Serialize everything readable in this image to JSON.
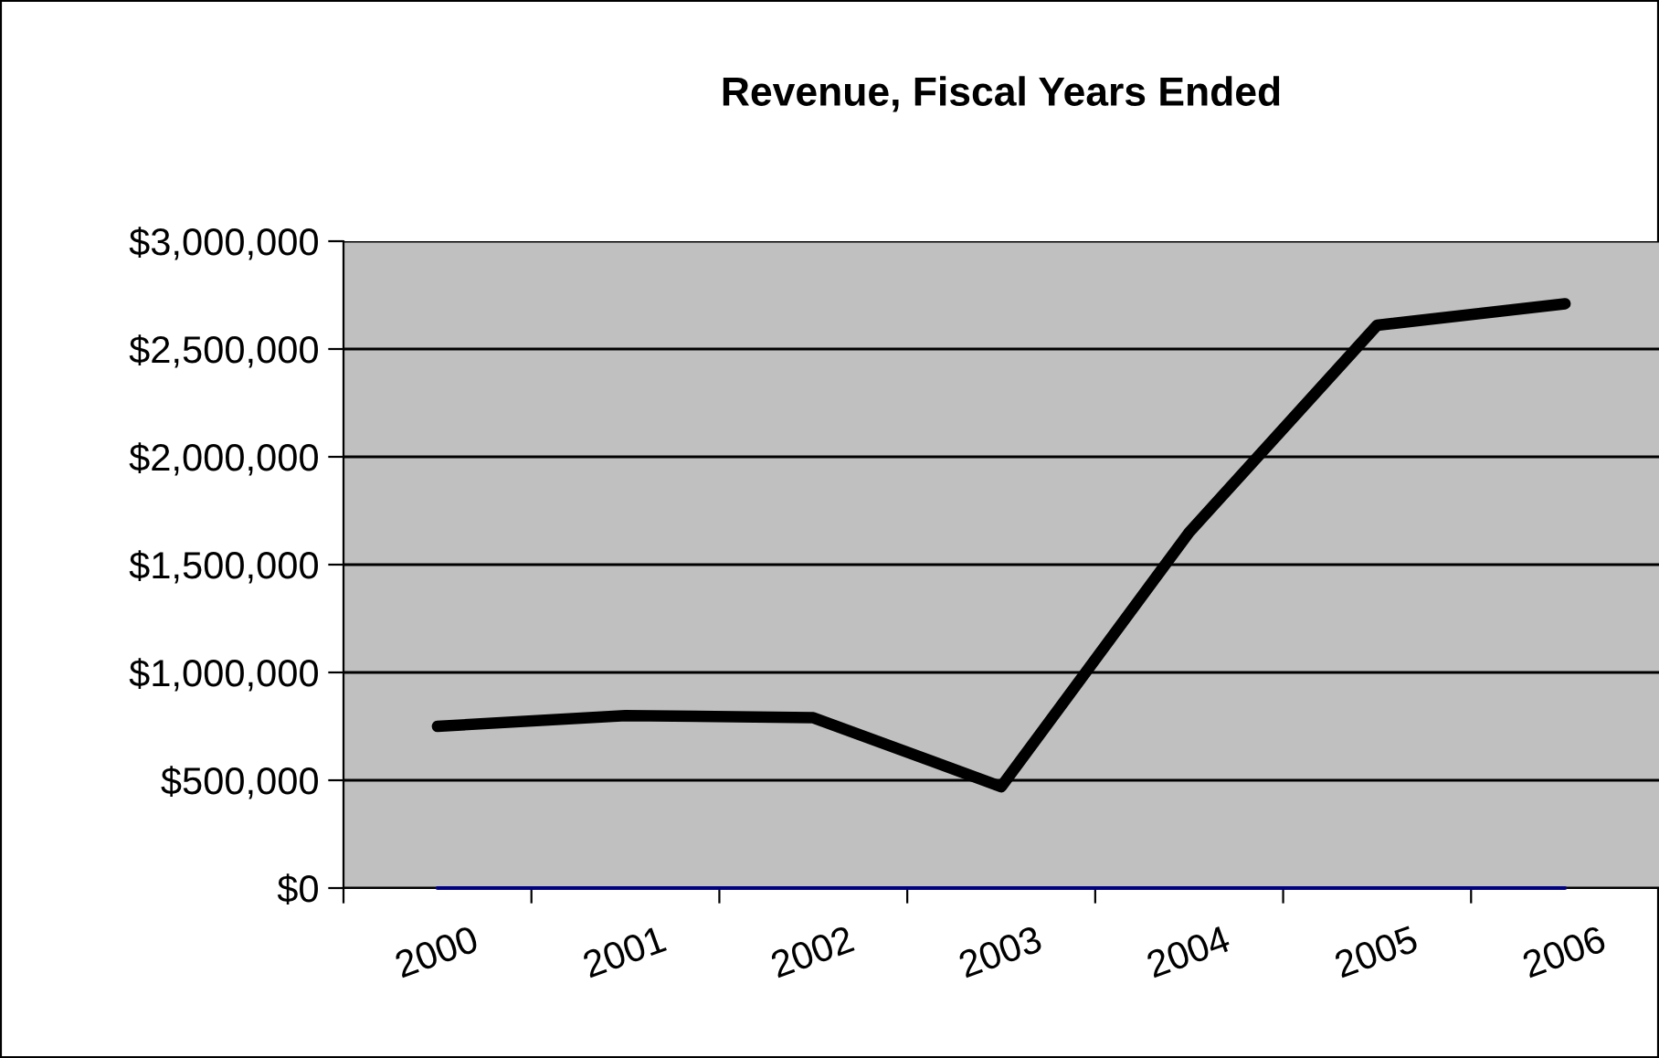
{
  "chart_data": {
    "type": "line",
    "title": "Revenue, Fiscal Years Ended",
    "categories": [
      "2000",
      "2001",
      "2002",
      "2003",
      "2004",
      "2005",
      "2006"
    ],
    "series": [
      {
        "color": "#000000",
        "values": [
          750000,
          800000,
          790000,
          470000,
          1650000,
          2610000,
          2710000
        ]
      },
      {
        "color": "#000080",
        "values": [
          0,
          0,
          0,
          0,
          0,
          0,
          0
        ]
      }
    ],
    "ylim": [
      0,
      3000000
    ],
    "yticks": [
      {
        "value": 0,
        "label": "$0"
      },
      {
        "value": 500000,
        "label": "$500,000"
      },
      {
        "value": 1000000,
        "label": "$1,000,000"
      },
      {
        "value": 1500000,
        "label": "$1,500,000"
      },
      {
        "value": 2000000,
        "label": "$2,000,000"
      },
      {
        "value": 2500000,
        "label": "$2,500,000"
      },
      {
        "value": 3000000,
        "label": "$3,000,000"
      }
    ],
    "grid": "y",
    "marker": "none",
    "line_style": "solid"
  }
}
